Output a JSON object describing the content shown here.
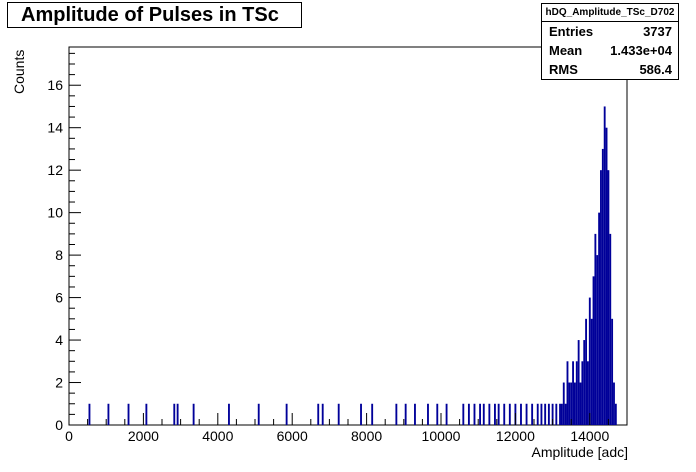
{
  "chart_data": {
    "type": "bar",
    "title": "Amplitude of Pulses in TSc",
    "xlabel": "Amplitude [adc]",
    "ylabel": "Counts",
    "xlim": [
      0,
      15000
    ],
    "ylim": [
      0,
      17.8
    ],
    "xticks": [
      0,
      2000,
      4000,
      6000,
      8000,
      10000,
      12000,
      14000
    ],
    "yticks": [
      0,
      2,
      4,
      6,
      8,
      10,
      12,
      14,
      16
    ],
    "grid": false,
    "bar_color": "#000099",
    "stats": {
      "name": "hDQ_Amplitude_TSc_D702",
      "rows": [
        {
          "label": "Entries",
          "value": "3737"
        },
        {
          "label": "Mean",
          "value": "1.433e+04"
        },
        {
          "label": "RMS",
          "value": "586.4"
        }
      ]
    },
    "series": [
      {
        "bins": [
          [
            550,
            1
          ],
          [
            1060,
            1
          ],
          [
            1600,
            1
          ],
          [
            2080,
            1
          ],
          [
            2830,
            1
          ],
          [
            2920,
            1
          ],
          [
            3350,
            1
          ],
          [
            4300,
            1
          ],
          [
            5100,
            1
          ],
          [
            5850,
            1
          ],
          [
            6700,
            1
          ],
          [
            6820,
            1
          ],
          [
            7250,
            1
          ],
          [
            7850,
            1
          ],
          [
            8150,
            1
          ],
          [
            8800,
            1
          ],
          [
            9050,
            1
          ],
          [
            9300,
            1
          ],
          [
            9650,
            1
          ],
          [
            9900,
            1
          ],
          [
            10150,
            1
          ],
          [
            10600,
            1
          ],
          [
            10750,
            1
          ],
          [
            10900,
            1
          ],
          [
            11050,
            1
          ],
          [
            11150,
            1
          ],
          [
            11300,
            1
          ],
          [
            11450,
            1
          ],
          [
            11550,
            1
          ],
          [
            11700,
            1
          ],
          [
            11850,
            1
          ],
          [
            12000,
            1
          ],
          [
            12150,
            1
          ],
          [
            12300,
            1
          ],
          [
            12450,
            1
          ],
          [
            12600,
            1
          ],
          [
            12700,
            1
          ],
          [
            12800,
            1
          ],
          [
            12900,
            1
          ],
          [
            13000,
            1
          ],
          [
            13100,
            1
          ],
          [
            13200,
            1
          ],
          [
            13250,
            1
          ],
          [
            13300,
            2
          ],
          [
            13350,
            1
          ],
          [
            13400,
            3
          ],
          [
            13450,
            2
          ],
          [
            13500,
            2
          ],
          [
            13550,
            3
          ],
          [
            13600,
            2
          ],
          [
            13650,
            3
          ],
          [
            13700,
            4
          ],
          [
            13750,
            2
          ],
          [
            13800,
            3
          ],
          [
            13850,
            4
          ],
          [
            13900,
            5
          ],
          [
            13950,
            3
          ],
          [
            14000,
            6
          ],
          [
            14050,
            5
          ],
          [
            14100,
            7
          ],
          [
            14150,
            9
          ],
          [
            14200,
            8
          ],
          [
            14250,
            10
          ],
          [
            14300,
            12
          ],
          [
            14350,
            13
          ],
          [
            14400,
            15
          ],
          [
            14450,
            14
          ],
          [
            14500,
            12
          ],
          [
            14550,
            9
          ],
          [
            14600,
            5
          ],
          [
            14650,
            2
          ],
          [
            14700,
            1
          ]
        ]
      }
    ]
  }
}
